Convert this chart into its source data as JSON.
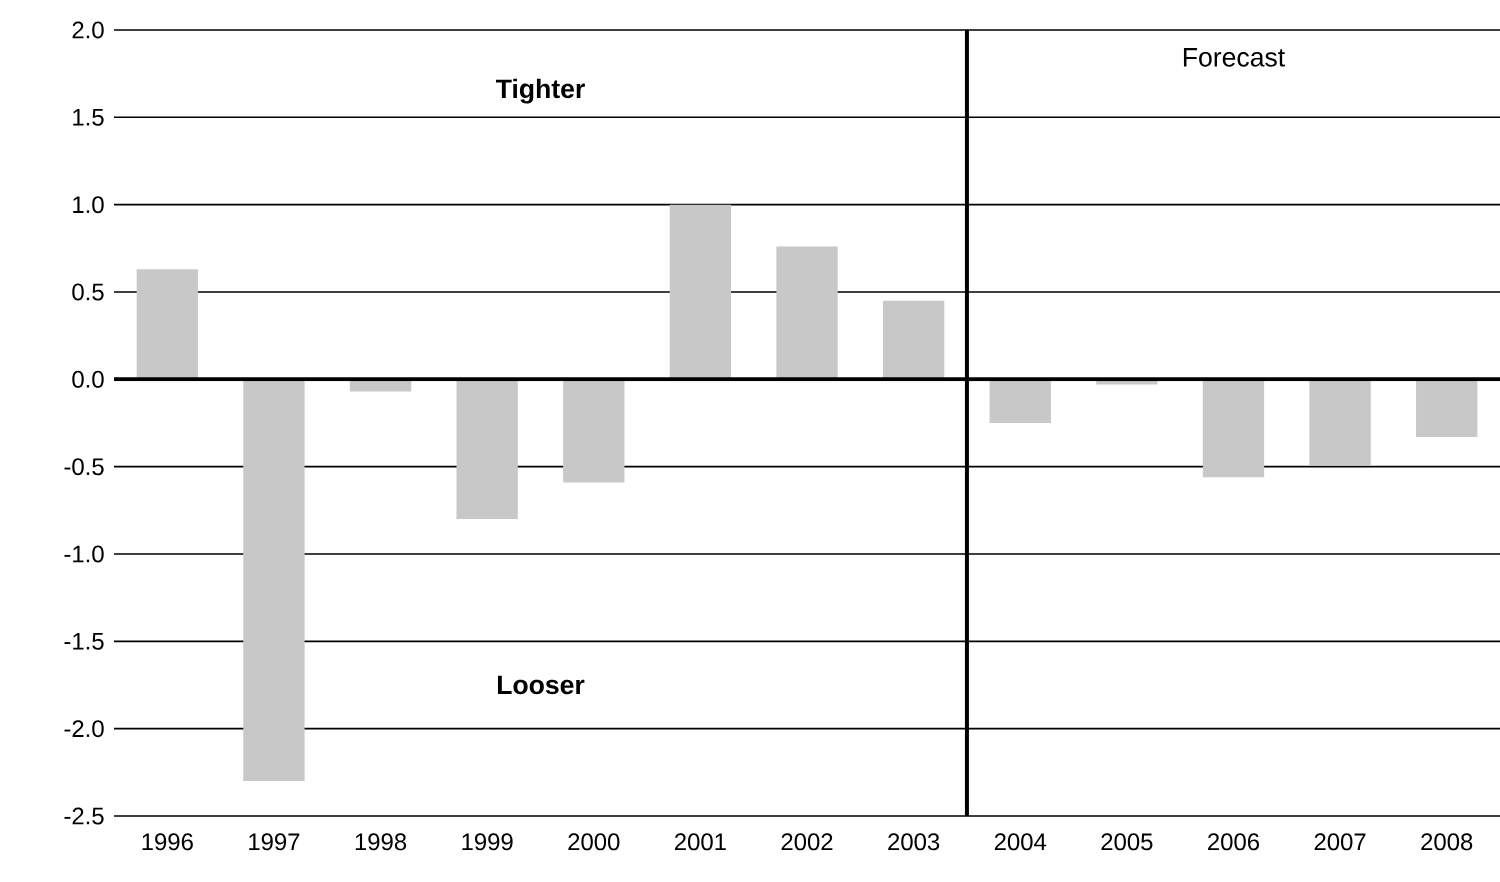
{
  "chart_data": {
    "type": "bar",
    "x": [
      1996,
      1997,
      1998,
      1999,
      2000,
      2001,
      2002,
      2003,
      2004,
      2005,
      2006,
      2007,
      2008
    ],
    "values": [
      0.63,
      -2.3,
      -0.07,
      -0.8,
      -0.59,
      1.0,
      0.76,
      0.45,
      -0.25,
      -0.03,
      -0.56,
      -0.49,
      -0.33
    ],
    "color": "#c8c8c8",
    "xlim": [
      1995.5,
      2008.5
    ],
    "xticks": [
      1996,
      1997,
      1998,
      1999,
      2000,
      2001,
      2002,
      2003,
      2004,
      2005,
      2006,
      2007,
      2008
    ],
    "ylim": [
      -2.5,
      2.0
    ],
    "yticks": [
      {
        "value": -2.5,
        "label": "-2.5"
      },
      {
        "value": -2.0,
        "label": "-2.0"
      },
      {
        "value": -1.5,
        "label": "-1.5"
      },
      {
        "value": -1.0,
        "label": "-1.0"
      },
      {
        "value": -0.5,
        "label": "-0.5"
      },
      {
        "value": 0.0,
        "label": "0.0"
      },
      {
        "value": 0.5,
        "label": "0.5"
      },
      {
        "value": 1.0,
        "label": "1.0"
      },
      {
        "value": 1.5,
        "label": "1.5"
      },
      {
        "value": 2.0,
        "label": "2.0"
      }
    ],
    "grid": "y",
    "ref_lines": [
      {
        "axis": "x",
        "value": 2003.5,
        "label": "Forecast",
        "color": "#000000"
      }
    ],
    "annotations": [
      "**Tighter**",
      "**Looser**"
    ]
  }
}
